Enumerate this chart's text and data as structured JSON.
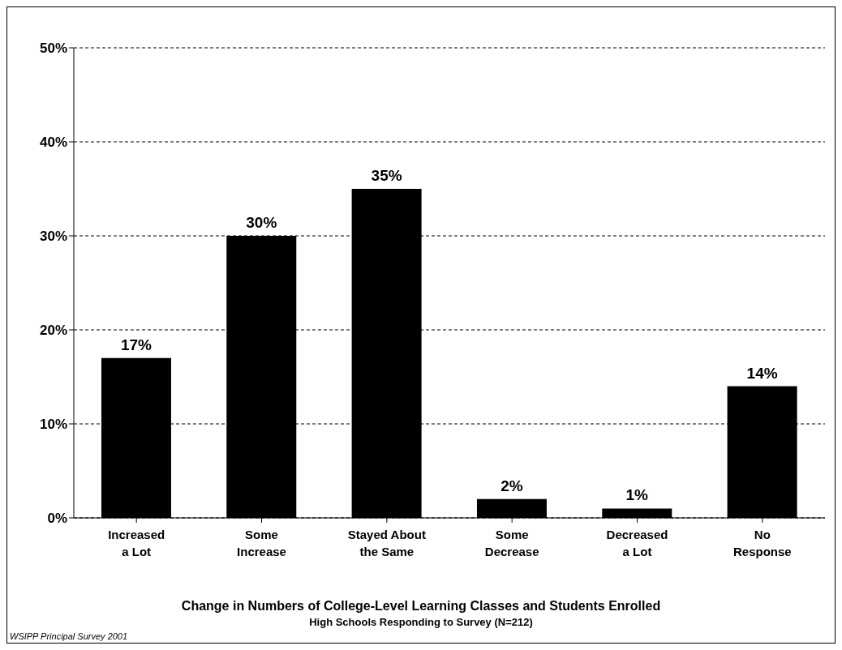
{
  "chart_data": {
    "type": "bar",
    "xlabel": "Change in Numbers of College-Level Learning Classes and Students Enrolled",
    "categories": [
      "Increased\na Lot",
      "Some\nIncrease",
      "Stayed About\nthe Same",
      "Some\nDecrease",
      "Decreased\na Lot",
      "No\nResponse"
    ],
    "values": [
      17,
      30,
      35,
      2,
      1,
      14
    ],
    "value_labels": [
      "17%",
      "30%",
      "35%",
      "2%",
      "1%",
      "14%"
    ],
    "color": "#000000",
    "ylim": [
      0,
      50
    ],
    "yticks": [
      {
        "value": 0,
        "label": "0%"
      },
      {
        "value": 10,
        "label": "10%"
      },
      {
        "value": 20,
        "label": "20%"
      },
      {
        "value": 30,
        "label": "30%"
      },
      {
        "value": 40,
        "label": "40%"
      },
      {
        "value": 50,
        "label": "50%"
      }
    ],
    "grid": "y",
    "annotations": [
      "High Schools Responding to Survey (N=212)",
      "WSIPP Principal Survey 2001"
    ]
  }
}
